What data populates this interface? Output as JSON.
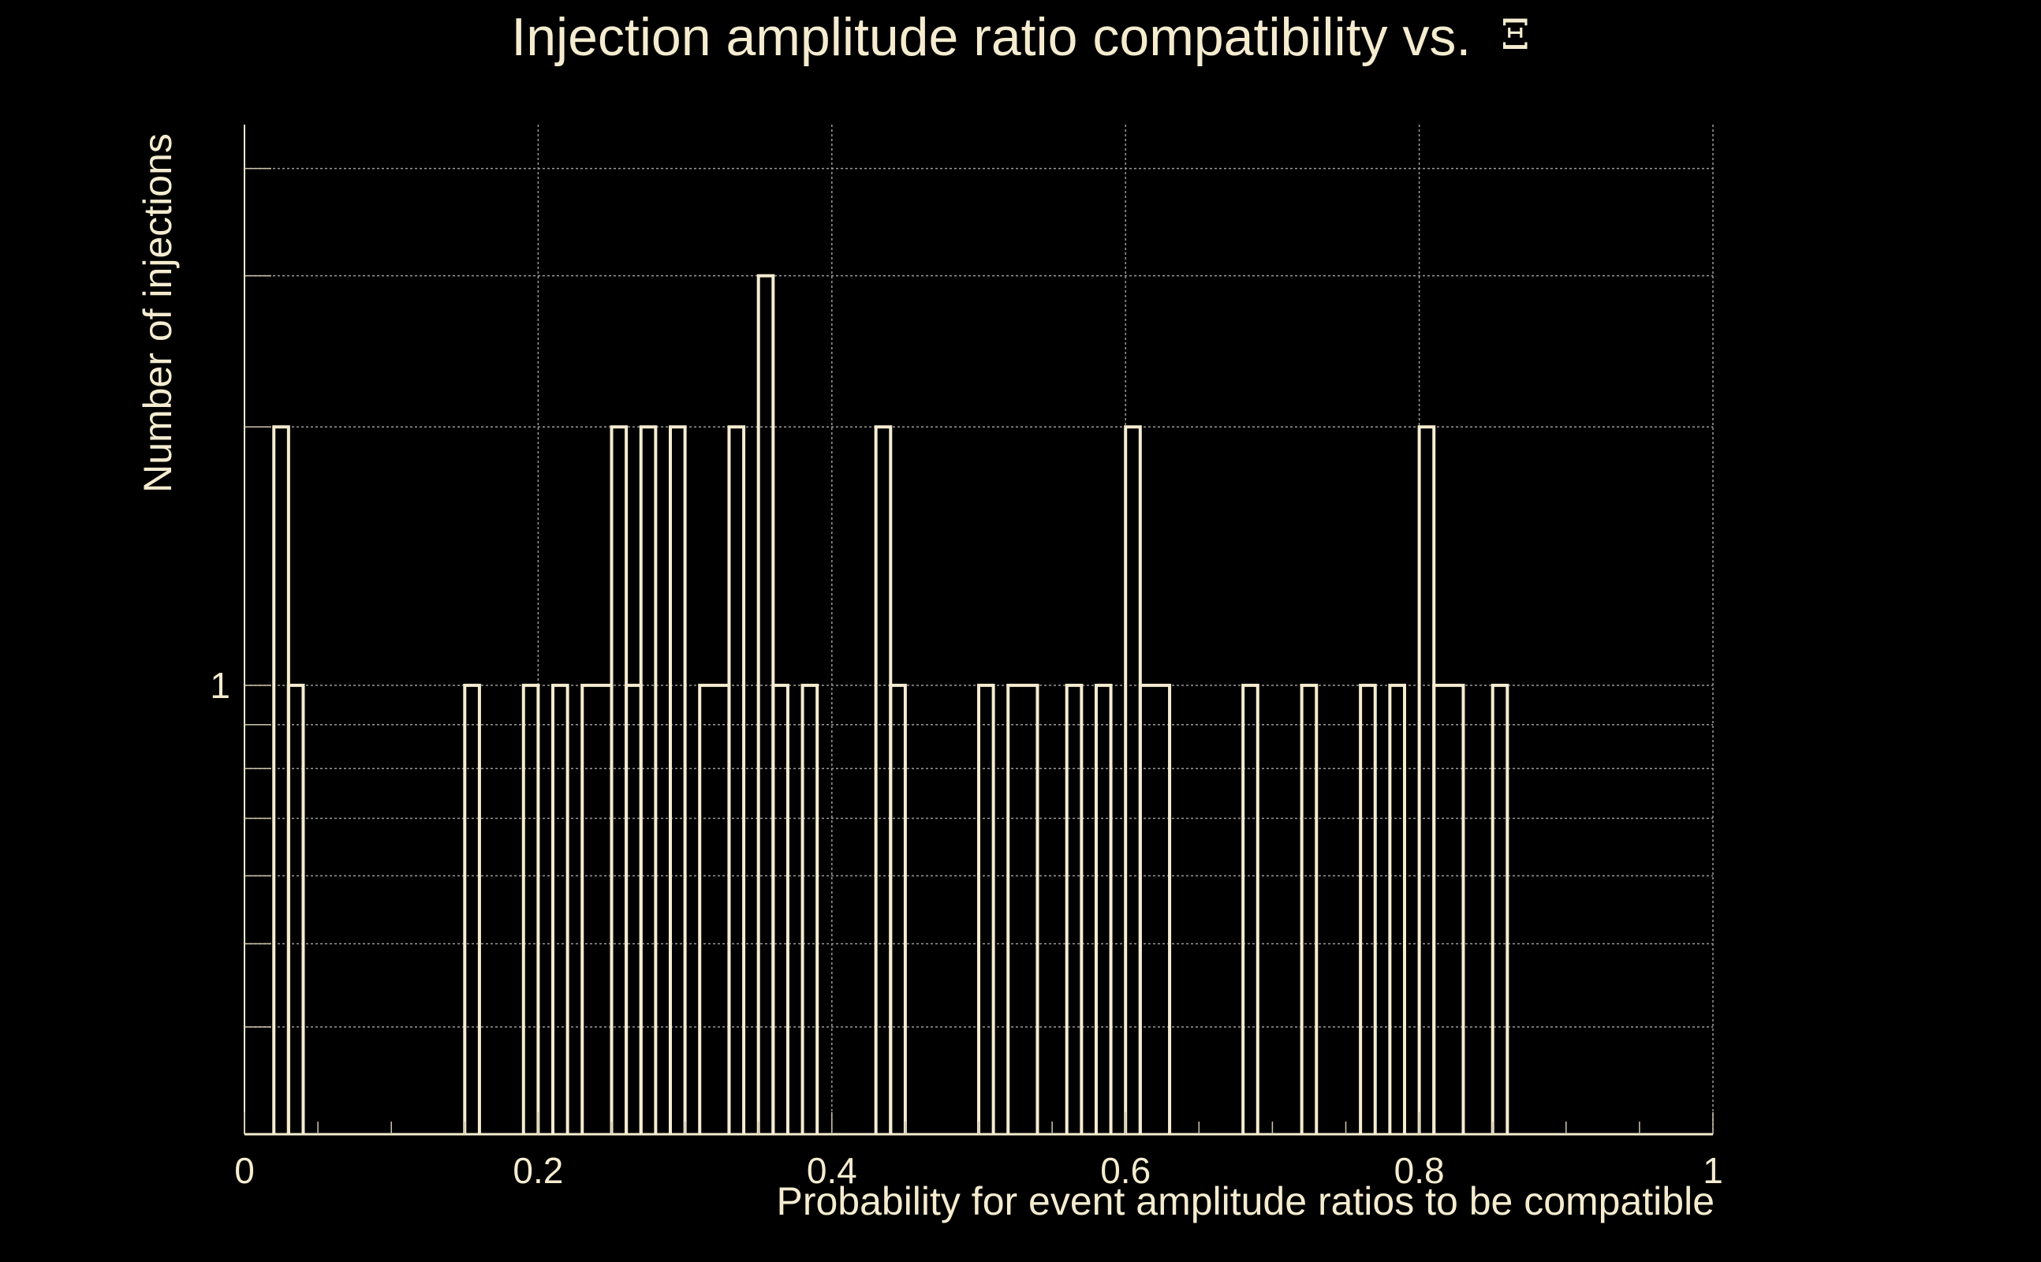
{
  "chart_data": {
    "type": "bar",
    "title": "Injection amplitude ratio compatibility vs.",
    "title_symbol": "Ξ",
    "xlabel": "Probability for event amplitude ratios to be compatible",
    "ylabel": "Number of injections",
    "x_tick_labels": [
      "0",
      "0.2",
      "0.4",
      "0.6",
      "0.8",
      "1"
    ],
    "y_tick_labels": [
      "1"
    ],
    "xlim": [
      0,
      1
    ],
    "ylim": [
      0.3,
      4.5
    ],
    "y_scale": "log",
    "grid": true,
    "style": {
      "line_color": "#f5ecd0",
      "grid_color": "#9a9a9a",
      "background": "#000000"
    },
    "bins": [
      {
        "x0": 0.02,
        "x1": 0.03,
        "y": 2
      },
      {
        "x0": 0.03,
        "x1": 0.04,
        "y": 1
      },
      {
        "x0": 0.15,
        "x1": 0.16,
        "y": 1
      },
      {
        "x0": 0.19,
        "x1": 0.2,
        "y": 1
      },
      {
        "x0": 0.21,
        "x1": 0.22,
        "y": 1
      },
      {
        "x0": 0.23,
        "x1": 0.25,
        "y": 1
      },
      {
        "x0": 0.25,
        "x1": 0.26,
        "y": 2
      },
      {
        "x0": 0.26,
        "x1": 0.27,
        "y": 1
      },
      {
        "x0": 0.27,
        "x1": 0.28,
        "y": 2
      },
      {
        "x0": 0.29,
        "x1": 0.3,
        "y": 2
      },
      {
        "x0": 0.31,
        "x1": 0.33,
        "y": 1
      },
      {
        "x0": 0.33,
        "x1": 0.34,
        "y": 2
      },
      {
        "x0": 0.35,
        "x1": 0.36,
        "y": 3
      },
      {
        "x0": 0.36,
        "x1": 0.37,
        "y": 1
      },
      {
        "x0": 0.38,
        "x1": 0.39,
        "y": 1
      },
      {
        "x0": 0.43,
        "x1": 0.44,
        "y": 2
      },
      {
        "x0": 0.44,
        "x1": 0.45,
        "y": 1
      },
      {
        "x0": 0.5,
        "x1": 0.51,
        "y": 1
      },
      {
        "x0": 0.52,
        "x1": 0.54,
        "y": 1
      },
      {
        "x0": 0.56,
        "x1": 0.57,
        "y": 1
      },
      {
        "x0": 0.58,
        "x1": 0.59,
        "y": 1
      },
      {
        "x0": 0.6,
        "x1": 0.61,
        "y": 2
      },
      {
        "x0": 0.61,
        "x1": 0.63,
        "y": 1
      },
      {
        "x0": 0.68,
        "x1": 0.69,
        "y": 1
      },
      {
        "x0": 0.72,
        "x1": 0.73,
        "y": 1
      },
      {
        "x0": 0.76,
        "x1": 0.77,
        "y": 1
      },
      {
        "x0": 0.78,
        "x1": 0.79,
        "y": 1
      },
      {
        "x0": 0.8,
        "x1": 0.81,
        "y": 2
      },
      {
        "x0": 0.81,
        "x1": 0.83,
        "y": 1
      },
      {
        "x0": 0.85,
        "x1": 0.86,
        "y": 1
      }
    ]
  }
}
